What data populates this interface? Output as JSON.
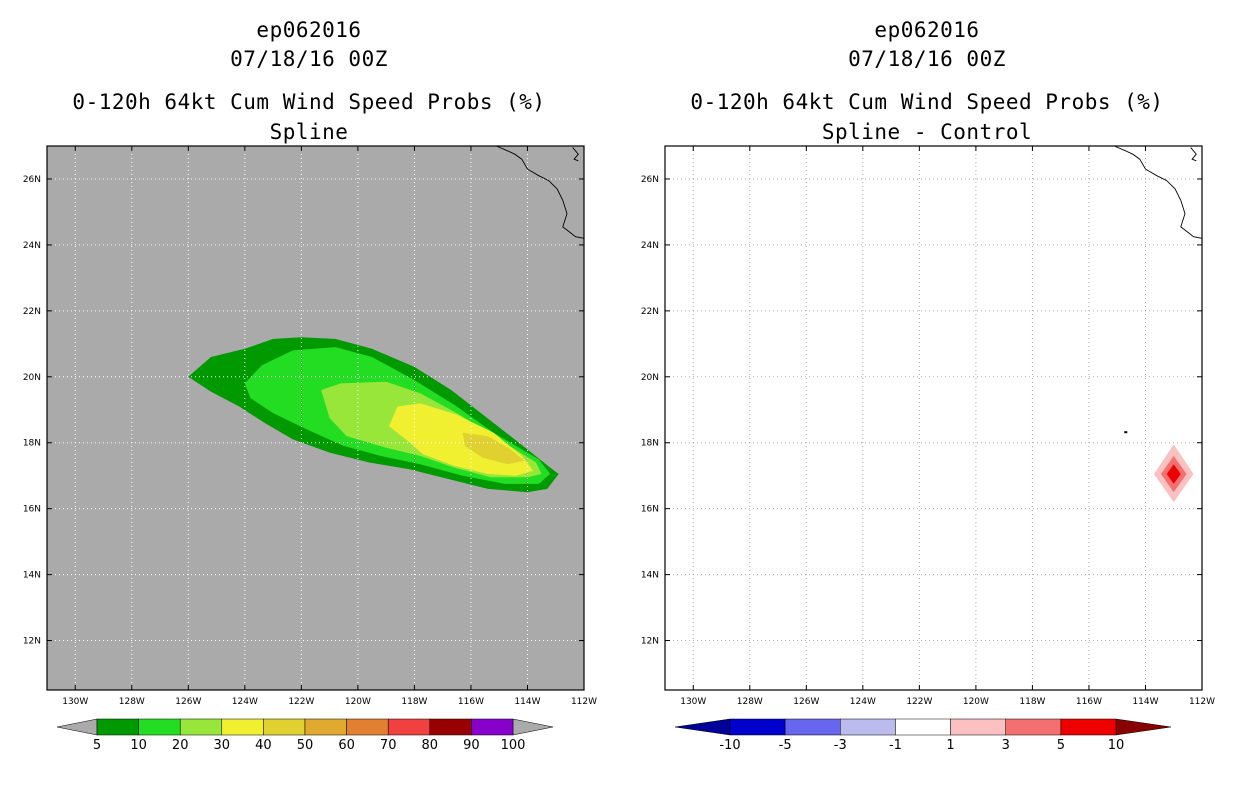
{
  "chart_data": [
    {
      "type": "filled-contour-map",
      "storm_id": "ep062016",
      "datetime": "07/18/16 00Z",
      "title": "0-120h 64kt Cum Wind Speed Probs (%)",
      "subtitle": "Spline",
      "background_color": "#aaaaaa",
      "xlim": [
        -131,
        -112
      ],
      "ylim": [
        10.5,
        27
      ],
      "x_ticks": [
        -130,
        -128,
        -126,
        -124,
        -122,
        -120,
        -118,
        -116,
        -114,
        -112
      ],
      "x_tick_labels": [
        "130W",
        "128W",
        "126W",
        "124W",
        "122W",
        "120W",
        "118W",
        "116W",
        "114W",
        "112W"
      ],
      "y_ticks": [
        12,
        14,
        16,
        18,
        20,
        22,
        24,
        26
      ],
      "y_tick_labels": [
        "12N",
        "14N",
        "16N",
        "18N",
        "20N",
        "22N",
        "24N",
        "26N"
      ],
      "colorbar": {
        "levels": [
          "5",
          "10",
          "20",
          "30",
          "40",
          "50",
          "60",
          "70",
          "80",
          "90",
          "100"
        ],
        "colors": [
          "#009900",
          "#22dd22",
          "#99e63a",
          "#f0f030",
          "#e0d030",
          "#e0aa30",
          "#e08030",
          "#f04040",
          "#990000",
          "#8800cc"
        ],
        "extend_color": "#aaaaaa"
      },
      "contours": [
        {
          "level": 5,
          "color": "#009900",
          "polygon": [
            [
              -126.0,
              20.0
            ],
            [
              -125.2,
              20.6
            ],
            [
              -124.0,
              20.85
            ],
            [
              -123.0,
              21.15
            ],
            [
              -122.0,
              21.2
            ],
            [
              -120.8,
              21.15
            ],
            [
              -119.5,
              20.85
            ],
            [
              -118.0,
              20.3
            ],
            [
              -116.7,
              19.6
            ],
            [
              -115.5,
              18.8
            ],
            [
              -114.3,
              18.0
            ],
            [
              -113.2,
              17.25
            ],
            [
              -112.9,
              17.05
            ],
            [
              -113.3,
              16.6
            ],
            [
              -114.0,
              16.5
            ],
            [
              -115.4,
              16.6
            ],
            [
              -116.8,
              16.9
            ],
            [
              -118.2,
              17.2
            ],
            [
              -119.6,
              17.4
            ],
            [
              -121.0,
              17.7
            ],
            [
              -122.3,
              18.1
            ],
            [
              -123.3,
              18.6
            ],
            [
              -124.2,
              19.1
            ],
            [
              -125.2,
              19.55
            ]
          ]
        },
        {
          "level": 10,
          "color": "#22dd22",
          "polygon": [
            [
              -124.0,
              19.8
            ],
            [
              -123.4,
              20.35
            ],
            [
              -122.3,
              20.8
            ],
            [
              -120.8,
              20.9
            ],
            [
              -119.5,
              20.6
            ],
            [
              -118.0,
              19.9
            ],
            [
              -116.5,
              19.1
            ],
            [
              -115.2,
              18.3
            ],
            [
              -113.6,
              17.5
            ],
            [
              -113.2,
              17.05
            ],
            [
              -113.6,
              16.75
            ],
            [
              -114.8,
              16.75
            ],
            [
              -116.3,
              17.0
            ],
            [
              -117.8,
              17.35
            ],
            [
              -119.2,
              17.6
            ],
            [
              -120.5,
              17.9
            ],
            [
              -121.8,
              18.4
            ],
            [
              -123.0,
              18.9
            ],
            [
              -123.8,
              19.35
            ]
          ]
        },
        {
          "level": 20,
          "color": "#99e63a",
          "polygon": [
            [
              -121.3,
              19.6
            ],
            [
              -120.6,
              19.8
            ],
            [
              -119.0,
              19.85
            ],
            [
              -117.8,
              19.5
            ],
            [
              -116.5,
              18.9
            ],
            [
              -115.0,
              18.1
            ],
            [
              -113.7,
              17.4
            ],
            [
              -113.5,
              17.05
            ],
            [
              -114.0,
              16.95
            ],
            [
              -115.3,
              16.95
            ],
            [
              -116.6,
              17.25
            ],
            [
              -117.8,
              17.6
            ],
            [
              -119.0,
              17.85
            ],
            [
              -120.4,
              18.2
            ],
            [
              -121.0,
              18.75
            ]
          ]
        },
        {
          "level": 30,
          "color": "#f0f030",
          "polygon": [
            [
              -118.6,
              19.1
            ],
            [
              -117.8,
              19.2
            ],
            [
              -116.5,
              18.85
            ],
            [
              -115.2,
              18.3
            ],
            [
              -114.2,
              17.6
            ],
            [
              -113.8,
              17.15
            ],
            [
              -114.4,
              17.0
            ],
            [
              -115.4,
              17.05
            ],
            [
              -116.6,
              17.3
            ],
            [
              -117.7,
              17.65
            ],
            [
              -118.3,
              18.1
            ],
            [
              -118.9,
              18.5
            ]
          ]
        },
        {
          "level": 40,
          "color": "#e0d030",
          "polygon": [
            [
              -116.3,
              18.3
            ],
            [
              -115.4,
              18.2
            ],
            [
              -114.6,
              17.8
            ],
            [
              -114.1,
              17.45
            ],
            [
              -114.7,
              17.35
            ],
            [
              -115.6,
              17.55
            ],
            [
              -116.2,
              17.9
            ]
          ]
        }
      ]
    },
    {
      "type": "filled-contour-map",
      "storm_id": "ep062016",
      "datetime": "07/18/16 00Z",
      "title": "0-120h 64kt Cum Wind Speed Probs (%)",
      "subtitle": "Spline - Control",
      "background_color": "#ffffff",
      "xlim": [
        -131,
        -112
      ],
      "ylim": [
        10.5,
        27
      ],
      "x_ticks": [
        -130,
        -128,
        -126,
        -124,
        -122,
        -120,
        -118,
        -116,
        -114,
        -112
      ],
      "x_tick_labels": [
        "130W",
        "128W",
        "126W",
        "124W",
        "122W",
        "120W",
        "118W",
        "116W",
        "114W",
        "112W"
      ],
      "y_ticks": [
        12,
        14,
        16,
        18,
        20,
        22,
        24,
        26
      ],
      "y_tick_labels": [
        "12N",
        "14N",
        "16N",
        "18N",
        "20N",
        "22N",
        "24N",
        "26N"
      ],
      "colorbar": {
        "levels": [
          "-10",
          "-5",
          "-3",
          "-1",
          "1",
          "3",
          "5",
          "10"
        ],
        "colors": [
          "#0000cc",
          "#6666ee",
          "#bbbbee",
          "#ffffff",
          "#fbc0c0",
          "#f47070",
          "#ee0000"
        ],
        "extend_low_color": "#000099",
        "extend_high_color": "#880000"
      },
      "contours": [
        {
          "level": 1,
          "color": "#fbc0c0",
          "polygon": [
            [
              -113.0,
              17.95
            ],
            [
              -112.3,
              17.05
            ],
            [
              -113.0,
              16.2
            ],
            [
              -113.7,
              17.05
            ]
          ]
        },
        {
          "level": 3,
          "color": "#f47070",
          "polygon": [
            [
              -113.0,
              17.6
            ],
            [
              -112.55,
              17.05
            ],
            [
              -113.0,
              16.5
            ],
            [
              -113.45,
              17.05
            ]
          ]
        },
        {
          "level": 5,
          "color": "#ee0000",
          "polygon": [
            [
              -113.0,
              17.35
            ],
            [
              -112.75,
              17.05
            ],
            [
              -113.0,
              16.75
            ],
            [
              -113.25,
              17.05
            ]
          ]
        }
      ]
    }
  ]
}
